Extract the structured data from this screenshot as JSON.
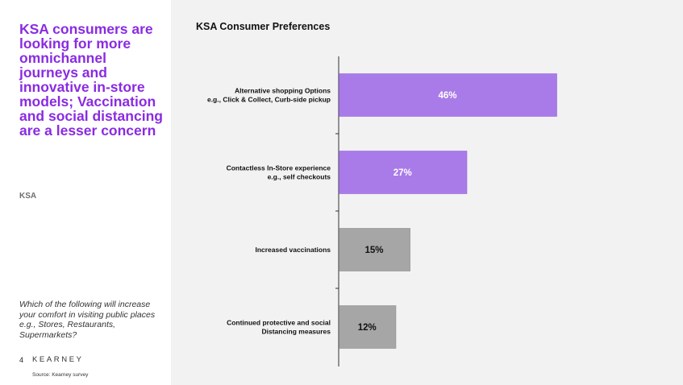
{
  "left": {
    "headline": "KSA consumers are looking for more omnichannel journeys and innovative in-store models; Vaccination and social distancing are a lesser concern",
    "region": "KSA",
    "question": "Which of the following will increase your comfort in visiting public places e.g., Stores, Restaurants, Supermarkets?",
    "page_number": "4",
    "brand": "KEARNEY",
    "source": "Source: Kearney survey"
  },
  "colors": {
    "headline": "#8a2be2",
    "highlight_bar": "#a97be8",
    "muted_bar": "#a6a6a6",
    "highlight_text": "#ffffff",
    "muted_text": "#111111"
  },
  "chart_data": {
    "type": "bar",
    "orientation": "horizontal",
    "title": "KSA Consumer Preferences",
    "categories": [
      [
        "Alternative shopping Options",
        "e.g., Click & Collect, Curb-side pickup"
      ],
      [
        "Contactless In-Store experience",
        "e.g., self checkouts"
      ],
      [
        "Increased vaccinations"
      ],
      [
        "Continued protective and social",
        "Distancing measures"
      ]
    ],
    "values": [
      46,
      27,
      15,
      12
    ],
    "value_labels": [
      "46%",
      "27%",
      "15%",
      "12%"
    ],
    "highlighted": [
      true,
      true,
      false,
      false
    ],
    "xlim": [
      0,
      60
    ],
    "grid": false,
    "legend": "none"
  }
}
